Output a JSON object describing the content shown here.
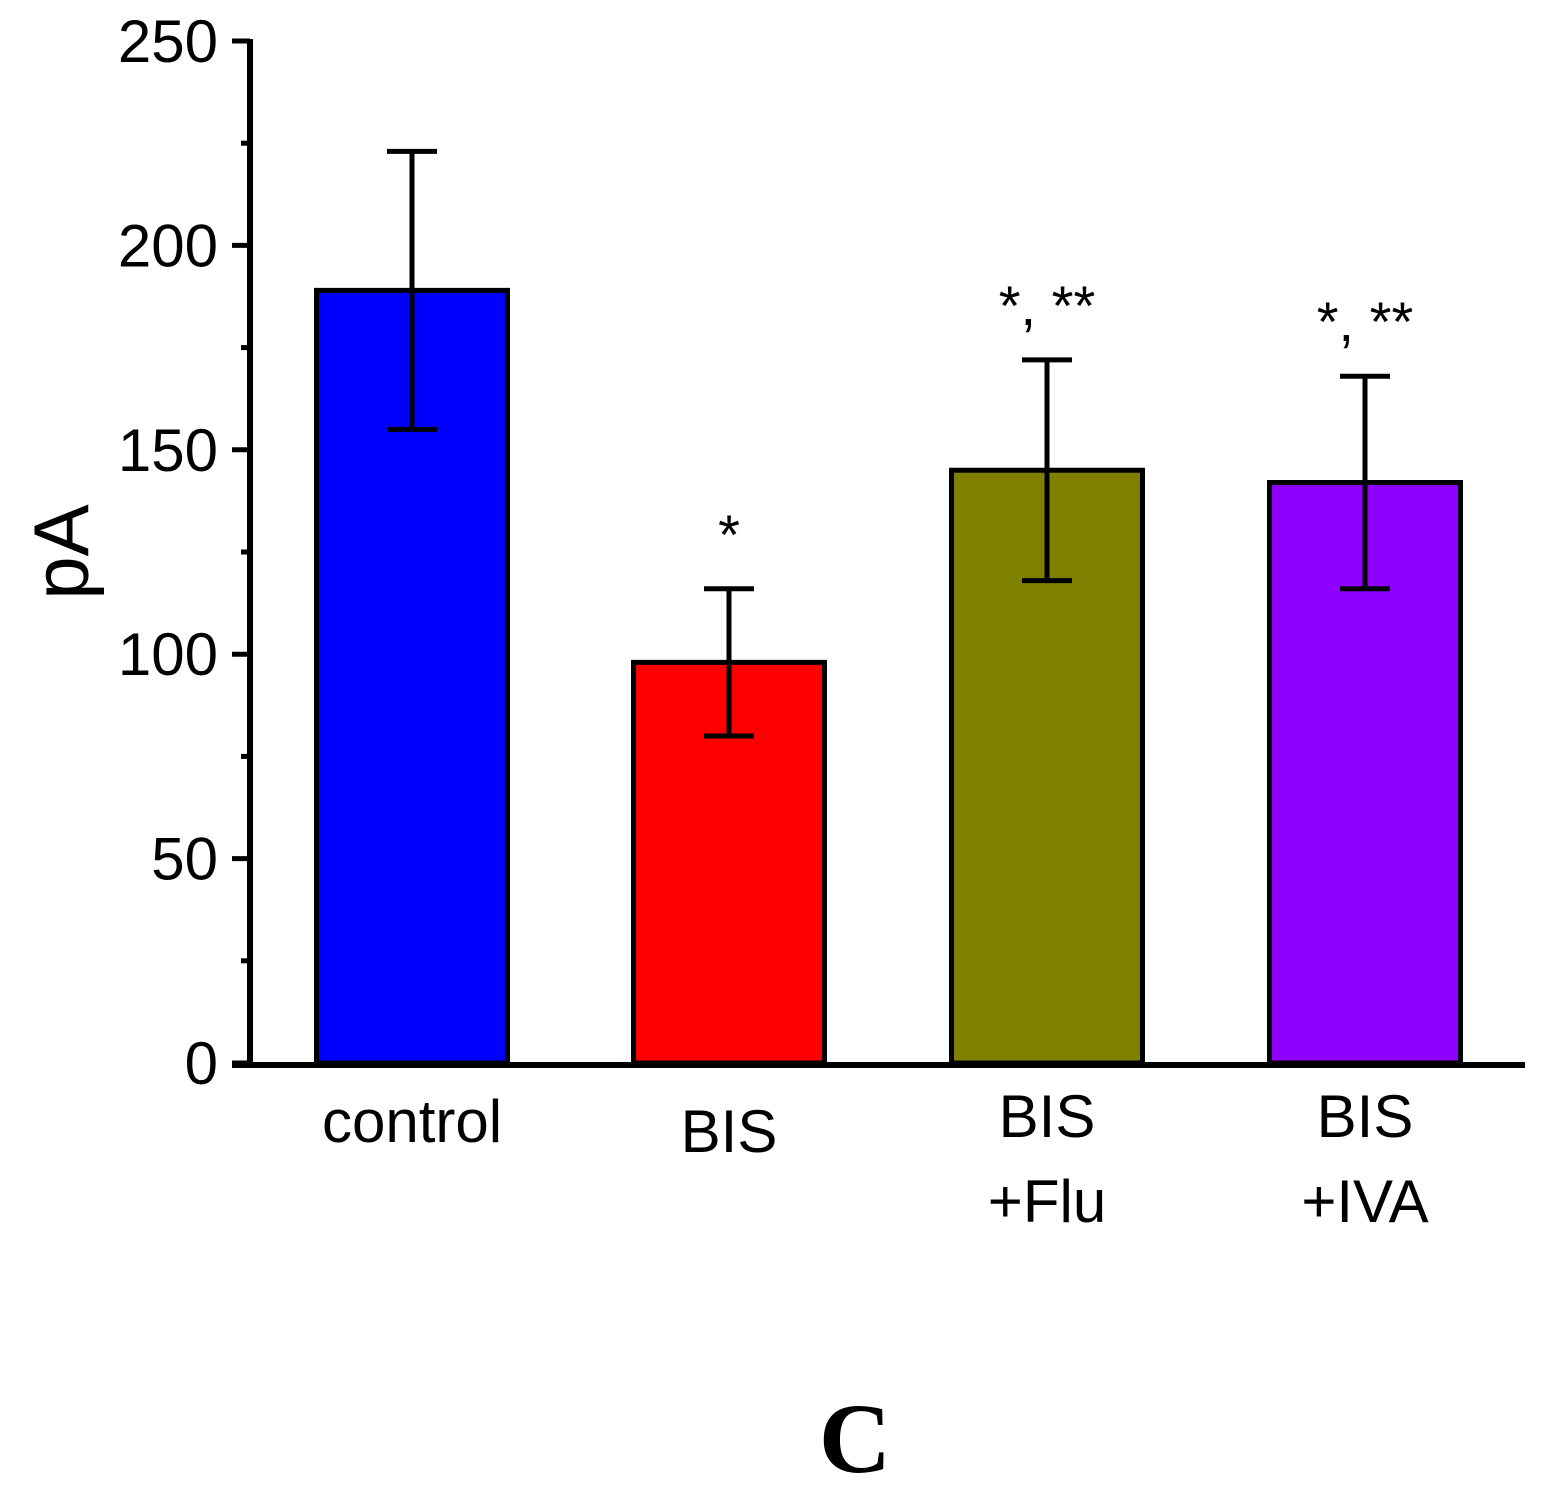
{
  "chart_data": {
    "type": "bar",
    "title": "",
    "xlabel": "",
    "ylabel": "pA",
    "ylim": [
      0,
      250
    ],
    "yticks": [
      0,
      50,
      100,
      150,
      200,
      250
    ],
    "grid": false,
    "categories": [
      {
        "lines": [
          "control"
        ]
      },
      {
        "lines": [
          "BIS"
        ]
      },
      {
        "lines": [
          "BIS",
          "+Flu"
        ]
      },
      {
        "lines": [
          "BIS",
          "+IVA"
        ]
      }
    ],
    "values": [
      189,
      98,
      145,
      142
    ],
    "error_upper": [
      223,
      116,
      172,
      168
    ],
    "error_lower": [
      155,
      80,
      118,
      116
    ],
    "colors": [
      "#0000ff",
      "#ff0000",
      "#808000",
      "#8f00ff"
    ],
    "annotations": [
      {
        "bar": 1,
        "text": "*"
      },
      {
        "bar": 2,
        "text": "*, **"
      },
      {
        "bar": 3,
        "text": "*, **"
      }
    ],
    "panel_label": "C"
  }
}
